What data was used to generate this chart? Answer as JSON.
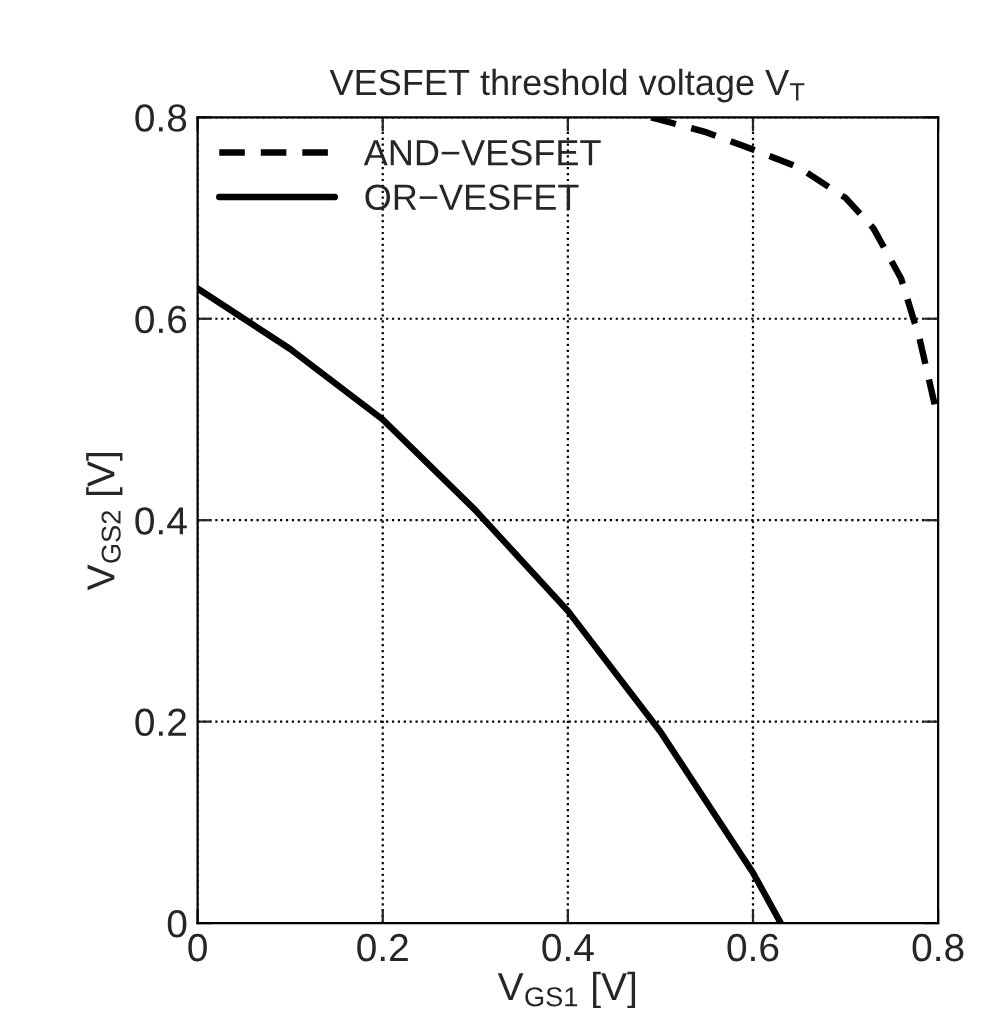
{
  "chart_data": {
    "type": "line",
    "title": "VESFET threshold voltage V$_{T}$",
    "xlabel": "V$_{GS1}$ [V]",
    "ylabel": "V$_{GS2}$ [V]",
    "series": [
      {
        "name": "AND−VESFET",
        "color": "#000000",
        "line_style": "dashed",
        "x": [
          0.49,
          0.55,
          0.6,
          0.65,
          0.7,
          0.73,
          0.76,
          0.78,
          0.8
        ],
        "values": [
          0.8,
          0.785,
          0.768,
          0.75,
          0.72,
          0.69,
          0.64,
          0.58,
          0.5
        ]
      },
      {
        "name": "OR−VESFET",
        "color": "#000000",
        "line_style": "solid",
        "x": [
          0,
          0.1,
          0.2,
          0.3,
          0.4,
          0.5,
          0.55,
          0.6,
          0.63
        ],
        "values": [
          0.63,
          0.57,
          0.5,
          0.41,
          0.31,
          0.19,
          0.12,
          0.05,
          0
        ]
      }
    ],
    "xlim": [
      0,
      0.8
    ],
    "ylim": [
      0,
      0.8
    ],
    "xticks": [
      0,
      0.2,
      0.4,
      0.6,
      0.8
    ],
    "yticks": [
      0,
      0.2,
      0.4,
      0.6,
      0.8
    ],
    "grid": true,
    "legend": "top left",
    "marker": "none"
  }
}
